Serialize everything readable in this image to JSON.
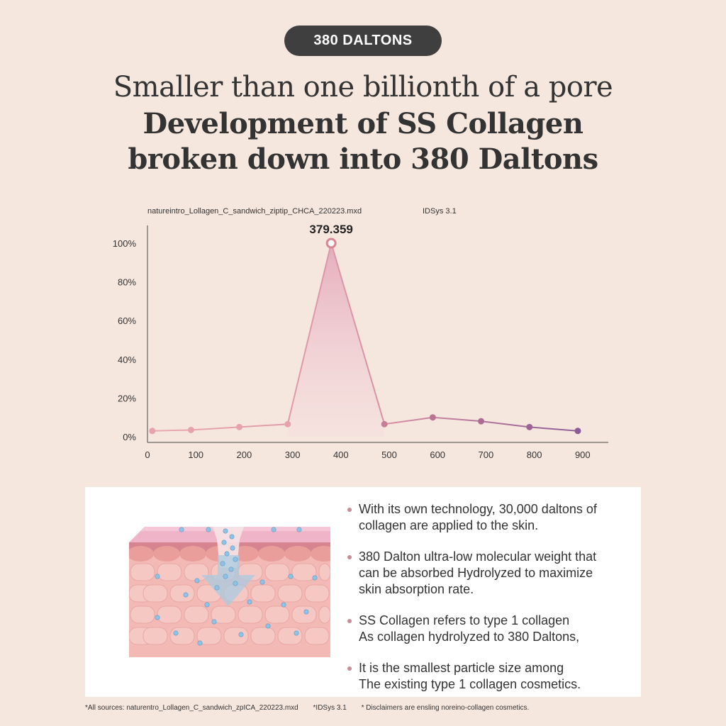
{
  "badge": "380 DALTONS",
  "headline": {
    "line1": "Smaller than one billionth of a pore",
    "line2": "Development of SS Collagen",
    "line3": "broken down into 380 Daltons"
  },
  "chart_header": {
    "file": "natureintro_Lollagen_C_sandwich_ziptip_CHCA_220223.mxd",
    "system": "IDSys 3.1"
  },
  "chart_data": {
    "type": "line",
    "title": "",
    "xlabel": "",
    "ylabel": "",
    "x_ticks": [
      "0",
      "100",
      "200",
      "300",
      "400",
      "500",
      "600",
      "700",
      "800",
      "900"
    ],
    "y_ticks": [
      "100%",
      "80%",
      "60%",
      "40%",
      "20%",
      "0%"
    ],
    "xlim": [
      0,
      950
    ],
    "ylim": [
      0,
      100
    ],
    "peak_label": "379.359",
    "series": [
      {
        "name": "spectrum",
        "points": [
          [
            10,
            3
          ],
          [
            90,
            3.5
          ],
          [
            190,
            5
          ],
          [
            290,
            6.5
          ],
          [
            380,
            100
          ],
          [
            490,
            6.5
          ],
          [
            590,
            10
          ],
          [
            690,
            8
          ],
          [
            790,
            5
          ],
          [
            890,
            3
          ]
        ]
      }
    ],
    "colors": {
      "pink": "#e6a3ad",
      "peak": "#d98596",
      "purple": "#8c5c94",
      "fill": "#eab9c6"
    }
  },
  "bullets": [
    {
      "line1": "With its own technology, 30,000 daltons of",
      "line2": "collagen are applied to the skin."
    },
    {
      "line1": "380 Dalton ultra-low molecular weight that",
      "line2": "can be absorbed Hydrolyzed to maximize",
      "line3": "skin absorption rate."
    },
    {
      "line1": "SS Collagen refers to type 1 collagen",
      "line2": "As collagen hydrolyzed to 380 Daltons,"
    },
    {
      "line1": "It is the smallest particle size among",
      "line2": "The existing type 1 collagen cosmetics."
    }
  ],
  "footnote": {
    "sources": "*All sources: naturentro_Lollagen_C_sandwich_zpICA_220223.mxd",
    "system": "*IDSys 3.1",
    "disclaimer": "* Disclaimers are ensling noreino-collagen cosmetics."
  }
}
